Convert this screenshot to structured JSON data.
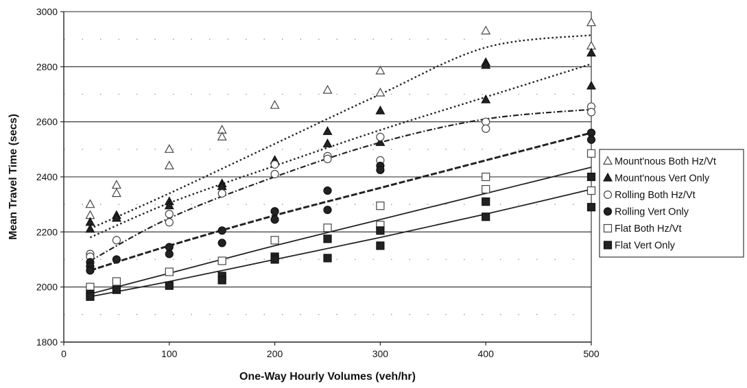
{
  "chart_data": {
    "type": "scatter",
    "title": "",
    "xlabel": "One-Way Hourly Volumes (veh/hr)",
    "ylabel": "Mean Travel Time (secs)",
    "xlim": [
      0,
      500
    ],
    "ylim": [
      1800,
      3000
    ],
    "x_ticks": [
      "0",
      "100",
      "200",
      "300",
      "400",
      "500"
    ],
    "y_ticks": [
      "1800",
      "2000",
      "2200",
      "2400",
      "2600",
      "2800",
      "3000"
    ],
    "grid": "horizontal major solid, dotted minor",
    "legend_position": "right",
    "series": [
      {
        "name": "Mount'nous Both Hz/Vt",
        "marker": "triangle-open",
        "trendline": "dotted",
        "points": [
          [
            25,
            2300
          ],
          [
            25,
            2260
          ],
          [
            50,
            2370
          ],
          [
            50,
            2340
          ],
          [
            100,
            2500
          ],
          [
            100,
            2440
          ],
          [
            150,
            2570
          ],
          [
            150,
            2545
          ],
          [
            200,
            2660
          ],
          [
            250,
            2715
          ],
          [
            300,
            2785
          ],
          [
            300,
            2705
          ],
          [
            400,
            2930
          ],
          [
            500,
            2960
          ],
          [
            500,
            2875
          ]
        ],
        "trend": [
          [
            25,
            2212
          ],
          [
            100,
            2340
          ],
          [
            200,
            2520
          ],
          [
            300,
            2700
          ],
          [
            400,
            2870
          ],
          [
            500,
            2915
          ]
        ]
      },
      {
        "name": "Mount'nous Vert Only",
        "marker": "triangle-filled",
        "trendline": "dotted",
        "points": [
          [
            25,
            2235
          ],
          [
            25,
            2210
          ],
          [
            50,
            2260
          ],
          [
            50,
            2250
          ],
          [
            100,
            2310
          ],
          [
            100,
            2295
          ],
          [
            150,
            2375
          ],
          [
            150,
            2365
          ],
          [
            200,
            2460
          ],
          [
            250,
            2565
          ],
          [
            250,
            2520
          ],
          [
            300,
            2640
          ],
          [
            300,
            2525
          ],
          [
            400,
            2815
          ],
          [
            400,
            2805
          ],
          [
            400,
            2680
          ],
          [
            500,
            2850
          ],
          [
            500,
            2730
          ]
        ],
        "trend": [
          [
            25,
            2180
          ],
          [
            100,
            2305
          ],
          [
            200,
            2440
          ],
          [
            300,
            2570
          ],
          [
            400,
            2690
          ],
          [
            500,
            2810
          ]
        ]
      },
      {
        "name": "Rolling Both Hz/Vt",
        "marker": "circle-open",
        "trendline": "dash-dot",
        "points": [
          [
            25,
            2120
          ],
          [
            25,
            2110
          ],
          [
            50,
            2170
          ],
          [
            100,
            2265
          ],
          [
            100,
            2235
          ],
          [
            150,
            2340
          ],
          [
            200,
            2445
          ],
          [
            200,
            2410
          ],
          [
            250,
            2475
          ],
          [
            250,
            2465
          ],
          [
            300,
            2545
          ],
          [
            300,
            2460
          ],
          [
            400,
            2600
          ],
          [
            400,
            2575
          ],
          [
            500,
            2655
          ],
          [
            500,
            2635
          ]
        ],
        "trend": [
          [
            25,
            2095
          ],
          [
            100,
            2250
          ],
          [
            200,
            2400
          ],
          [
            300,
            2525
          ],
          [
            400,
            2610
          ],
          [
            500,
            2645
          ]
        ]
      },
      {
        "name": "Rolling Vert Only",
        "marker": "circle-filled",
        "trendline": "dashed",
        "points": [
          [
            25,
            2090
          ],
          [
            25,
            2075
          ],
          [
            25,
            2060
          ],
          [
            50,
            2100
          ],
          [
            100,
            2145
          ],
          [
            100,
            2120
          ],
          [
            150,
            2205
          ],
          [
            150,
            2160
          ],
          [
            200,
            2275
          ],
          [
            200,
            2245
          ],
          [
            250,
            2350
          ],
          [
            250,
            2280
          ],
          [
            300,
            2440
          ],
          [
            300,
            2425
          ],
          [
            500,
            2560
          ],
          [
            500,
            2535
          ]
        ],
        "trend": [
          [
            25,
            2060
          ],
          [
            100,
            2150
          ],
          [
            200,
            2260
          ],
          [
            300,
            2360
          ],
          [
            400,
            2460
          ],
          [
            500,
            2560
          ]
        ]
      },
      {
        "name": "Flat Both Hz/Vt",
        "marker": "square-open",
        "trendline": "solid",
        "points": [
          [
            25,
            2000
          ],
          [
            50,
            2020
          ],
          [
            100,
            2055
          ],
          [
            150,
            2095
          ],
          [
            200,
            2170
          ],
          [
            250,
            2215
          ],
          [
            300,
            2295
          ],
          [
            300,
            2225
          ],
          [
            400,
            2400
          ],
          [
            400,
            2355
          ],
          [
            500,
            2485
          ],
          [
            500,
            2350
          ]
        ],
        "trend": [
          [
            25,
            1975
          ],
          [
            100,
            2050
          ],
          [
            200,
            2150
          ],
          [
            300,
            2245
          ],
          [
            400,
            2340
          ],
          [
            500,
            2435
          ]
        ]
      },
      {
        "name": "Flat Vert Only",
        "marker": "square-filled",
        "trendline": "solid",
        "points": [
          [
            25,
            1975
          ],
          [
            25,
            1965
          ],
          [
            50,
            1990
          ],
          [
            100,
            2005
          ],
          [
            150,
            2040
          ],
          [
            150,
            2025
          ],
          [
            200,
            2110
          ],
          [
            200,
            2100
          ],
          [
            250,
            2175
          ],
          [
            250,
            2105
          ],
          [
            300,
            2205
          ],
          [
            300,
            2150
          ],
          [
            400,
            2310
          ],
          [
            400,
            2255
          ],
          [
            500,
            2400
          ],
          [
            500,
            2290
          ]
        ],
        "trend": [
          [
            25,
            1965
          ],
          [
            100,
            2020
          ],
          [
            200,
            2100
          ],
          [
            300,
            2180
          ],
          [
            400,
            2265
          ],
          [
            500,
            2355
          ]
        ]
      }
    ]
  }
}
